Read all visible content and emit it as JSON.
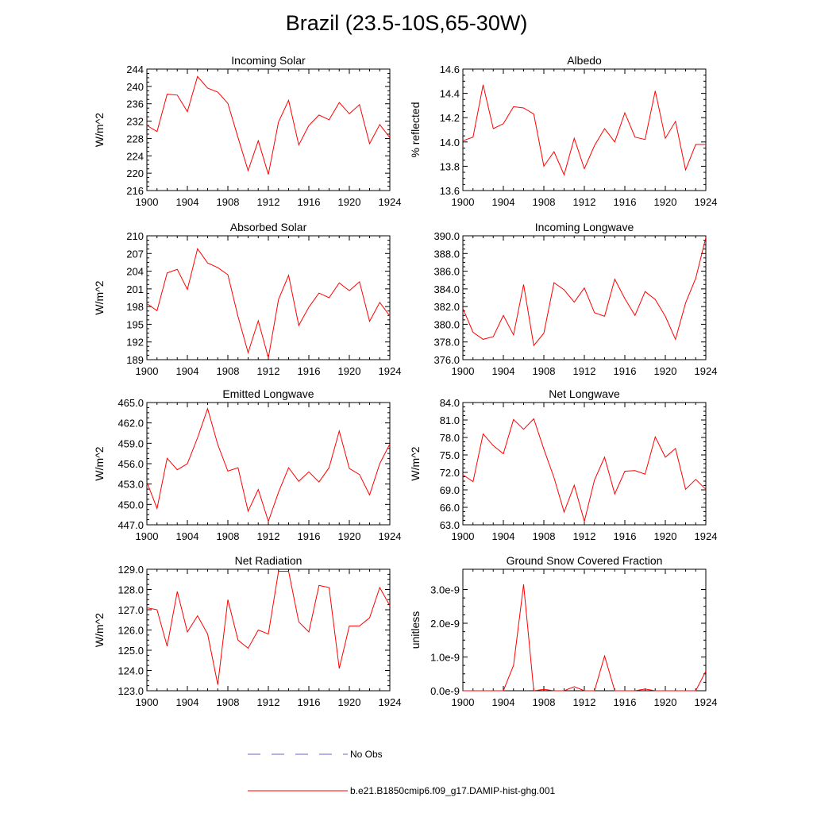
{
  "title": "Brazil (23.5-10S,65-30W)",
  "legend": {
    "no_obs_label": "No Obs",
    "model_label": "b.e21.B1850cmip6.f09_g17.DAMIP-hist-ghg.001",
    "model_color": "#ff0000",
    "no_obs_color": "#6666cc"
  },
  "chart_data": [
    {
      "type": "line",
      "title": "Incoming Solar",
      "ylabel": "W/m^2",
      "xlim": [
        1900,
        1924
      ],
      "ylim": [
        216,
        244
      ],
      "xticks": [
        "1900",
        "1904",
        "1908",
        "1912",
        "1916",
        "1920",
        "1924"
      ],
      "yticks": [
        "216",
        "220",
        "224",
        "228",
        "232",
        "236",
        "240",
        "244"
      ],
      "x": [
        1900,
        1901,
        1902,
        1903,
        1904,
        1905,
        1906,
        1907,
        1908,
        1909,
        1910,
        1911,
        1912,
        1913,
        1914,
        1915,
        1916,
        1917,
        1918,
        1919,
        1920,
        1921,
        1922,
        1923,
        1924
      ],
      "series": [
        {
          "values": [
            231.0,
            229.6,
            238.2,
            238.0,
            234.2,
            242.3,
            239.6,
            238.7,
            236.1,
            228.2,
            220.6,
            227.5,
            219.7,
            231.8,
            236.8,
            226.5,
            231.0,
            233.4,
            232.3,
            236.3,
            233.7,
            235.8,
            226.8,
            231.2,
            228.2
          ]
        }
      ]
    },
    {
      "type": "line",
      "title": "Albedo",
      "ylabel": "% reflected",
      "xlim": [
        1900,
        1924
      ],
      "ylim": [
        13.6,
        14.6
      ],
      "xticks": [
        "1900",
        "1904",
        "1908",
        "1912",
        "1916",
        "1920",
        "1924"
      ],
      "yticks": [
        "13.6",
        "13.8",
        "14.0",
        "14.2",
        "14.4",
        "14.6"
      ],
      "x": [
        1900,
        1901,
        1902,
        1903,
        1904,
        1905,
        1906,
        1907,
        1908,
        1909,
        1910,
        1911,
        1912,
        1913,
        1914,
        1915,
        1916,
        1917,
        1918,
        1919,
        1920,
        1921,
        1922,
        1923,
        1924
      ],
      "series": [
        {
          "values": [
            14.01,
            14.04,
            14.47,
            14.11,
            14.15,
            14.29,
            14.28,
            14.23,
            13.8,
            13.92,
            13.73,
            14.03,
            13.78,
            13.97,
            14.11,
            14.0,
            14.24,
            14.04,
            14.02,
            14.42,
            14.03,
            14.17,
            13.77,
            13.98,
            13.98
          ]
        }
      ]
    },
    {
      "type": "line",
      "title": "Absorbed Solar",
      "ylabel": "W/m^2",
      "xlim": [
        1900,
        1924
      ],
      "ylim": [
        189,
        210
      ],
      "xticks": [
        "1900",
        "1904",
        "1908",
        "1912",
        "1916",
        "1920",
        "1924"
      ],
      "yticks": [
        "189",
        "192",
        "195",
        "198",
        "201",
        "204",
        "207",
        "210"
      ],
      "x": [
        1900,
        1901,
        1902,
        1903,
        1904,
        1905,
        1906,
        1907,
        1908,
        1909,
        1910,
        1911,
        1912,
        1913,
        1914,
        1915,
        1916,
        1917,
        1918,
        1919,
        1920,
        1921,
        1922,
        1923,
        1924
      ],
      "series": [
        {
          "values": [
            198.5,
            197.3,
            203.7,
            204.3,
            200.9,
            207.8,
            205.4,
            204.6,
            203.4,
            196.3,
            190.2,
            195.6,
            189.3,
            199.2,
            203.3,
            194.8,
            197.9,
            200.3,
            199.5,
            202.0,
            200.7,
            202.2,
            195.5,
            198.7,
            196.4
          ]
        }
      ]
    },
    {
      "type": "line",
      "title": "Incoming Longwave",
      "ylabel": "",
      "xlim": [
        1900,
        1924
      ],
      "ylim": [
        376.0,
        390.0
      ],
      "xticks": [
        "1900",
        "1904",
        "1908",
        "1912",
        "1916",
        "1920",
        "1924"
      ],
      "yticks": [
        "376.0",
        "378.0",
        "380.0",
        "382.0",
        "384.0",
        "386.0",
        "388.0",
        "390.0"
      ],
      "x": [
        1900,
        1901,
        1902,
        1903,
        1904,
        1905,
        1906,
        1907,
        1908,
        1909,
        1910,
        1911,
        1912,
        1913,
        1914,
        1915,
        1916,
        1917,
        1918,
        1919,
        1920,
        1921,
        1922,
        1923,
        1924
      ],
      "series": [
        {
          "values": [
            381.8,
            379.1,
            378.3,
            378.6,
            381.0,
            378.8,
            384.5,
            377.6,
            379.0,
            384.7,
            383.9,
            382.5,
            384.1,
            381.3,
            380.9,
            385.1,
            382.9,
            381.0,
            383.7,
            382.8,
            380.9,
            378.3,
            382.4,
            385.2,
            389.8
          ]
        }
      ]
    },
    {
      "type": "line",
      "title": "Emitted Longwave",
      "ylabel": "W/m^2",
      "xlim": [
        1900,
        1924
      ],
      "ylim": [
        447.0,
        465.0
      ],
      "xticks": [
        "1900",
        "1904",
        "1908",
        "1912",
        "1916",
        "1920",
        "1924"
      ],
      "yticks": [
        "447.0",
        "450.0",
        "453.0",
        "456.0",
        "459.0",
        "462.0",
        "465.0"
      ],
      "x": [
        1900,
        1901,
        1902,
        1903,
        1904,
        1905,
        1906,
        1907,
        1908,
        1909,
        1910,
        1911,
        1912,
        1913,
        1914,
        1915,
        1916,
        1917,
        1918,
        1919,
        1920,
        1921,
        1922,
        1923,
        1924
      ],
      "series": [
        {
          "values": [
            453.3,
            449.4,
            456.8,
            455.1,
            456.0,
            459.8,
            464.1,
            458.8,
            454.9,
            455.4,
            449.0,
            452.2,
            447.5,
            451.8,
            455.4,
            453.4,
            454.8,
            453.3,
            455.4,
            460.8,
            455.3,
            454.4,
            451.4,
            456.0,
            458.9
          ]
        }
      ]
    },
    {
      "type": "line",
      "title": "Net Longwave",
      "ylabel": "W/m^2",
      "xlim": [
        1900,
        1924
      ],
      "ylim": [
        63.0,
        84.0
      ],
      "xticks": [
        "1900",
        "1904",
        "1908",
        "1912",
        "1916",
        "1920",
        "1924"
      ],
      "yticks": [
        "63.0",
        "66.0",
        "69.0",
        "72.0",
        "75.0",
        "78.0",
        "81.0",
        "84.0"
      ],
      "x": [
        1900,
        1901,
        1902,
        1903,
        1904,
        1905,
        1906,
        1907,
        1908,
        1909,
        1910,
        1911,
        1912,
        1913,
        1914,
        1915,
        1916,
        1917,
        1918,
        1919,
        1920,
        1921,
        1922,
        1923,
        1924
      ],
      "series": [
        {
          "values": [
            71.6,
            70.4,
            78.6,
            76.6,
            75.2,
            81.1,
            79.4,
            81.2,
            76.0,
            71.1,
            65.2,
            69.8,
            63.6,
            70.7,
            74.6,
            68.3,
            72.2,
            72.3,
            71.7,
            78.1,
            74.6,
            76.1,
            69.1,
            70.8,
            69.1
          ]
        }
      ]
    },
    {
      "type": "line",
      "title": "Net Radiation",
      "ylabel": "W/m^2",
      "xlim": [
        1900,
        1924
      ],
      "ylim": [
        123.0,
        129.0
      ],
      "xticks": [
        "1900",
        "1904",
        "1908",
        "1912",
        "1916",
        "1920",
        "1924"
      ],
      "yticks": [
        "123.0",
        "124.0",
        "125.0",
        "126.0",
        "127.0",
        "128.0",
        "129.0"
      ],
      "x": [
        1900,
        1901,
        1902,
        1903,
        1904,
        1905,
        1906,
        1907,
        1908,
        1909,
        1910,
        1911,
        1912,
        1913,
        1914,
        1915,
        1916,
        1917,
        1918,
        1919,
        1920,
        1921,
        1922,
        1923,
        1924
      ],
      "series": [
        {
          "values": [
            127.1,
            127.0,
            125.2,
            127.9,
            125.9,
            126.7,
            125.8,
            123.3,
            127.5,
            125.5,
            125.1,
            126.0,
            125.8,
            128.9,
            128.9,
            126.4,
            125.9,
            128.2,
            128.1,
            124.1,
            126.2,
            126.2,
            126.6,
            128.1,
            127.2
          ]
        }
      ]
    },
    {
      "type": "line",
      "title": "Ground Snow Covered Fraction",
      "ylabel": "unitless",
      "xlim": [
        1900,
        1924
      ],
      "ylim": [
        0,
        3.6e-09
      ],
      "xticks": [
        "1900",
        "1904",
        "1908",
        "1912",
        "1916",
        "1920",
        "1924"
      ],
      "yticks": [
        "0.0e-9",
        "1.0e-9",
        "2.0e-9",
        "3.0e-9"
      ],
      "ytick_values": [
        0,
        1e-09,
        2e-09,
        3e-09
      ],
      "x": [
        1900,
        1901,
        1902,
        1903,
        1904,
        1905,
        1906,
        1907,
        1908,
        1909,
        1910,
        1911,
        1912,
        1913,
        1914,
        1915,
        1916,
        1917,
        1918,
        1919,
        1920,
        1921,
        1922,
        1923,
        1924
      ],
      "series": [
        {
          "values": [
            0,
            0,
            0,
            0,
            0,
            7.5e-10,
            3.15e-09,
            0,
            4e-11,
            0,
            0,
            1.2e-10,
            0,
            0,
            1.03e-09,
            0,
            0,
            0,
            5e-11,
            0,
            0,
            0,
            0,
            0,
            5.8e-10
          ]
        }
      ]
    }
  ]
}
